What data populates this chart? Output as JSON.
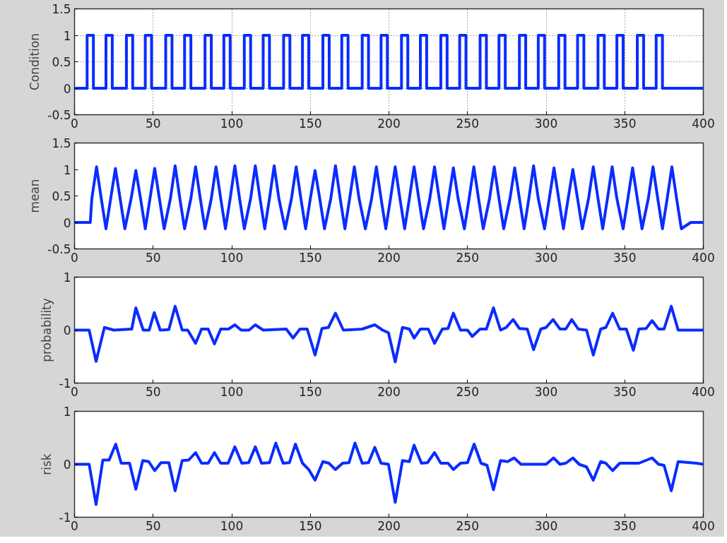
{
  "chart_data": [
    {
      "type": "line",
      "ylabel": "Condition",
      "xlim": [
        0,
        400
      ],
      "ylim": [
        -0.5,
        1.5
      ],
      "xticks": [
        0,
        50,
        100,
        150,
        200,
        250,
        300,
        350,
        400
      ],
      "yticks": [
        -0.5,
        0,
        0.5,
        1,
        1.5
      ],
      "grid": true,
      "x": [
        0,
        8,
        8,
        12,
        12,
        20,
        20,
        24,
        24,
        33,
        33,
        37,
        37,
        45,
        45,
        49,
        49,
        58,
        58,
        62,
        62,
        70,
        70,
        74,
        74,
        83,
        83,
        87,
        87,
        95,
        95,
        99,
        99,
        108,
        108,
        112,
        112,
        120,
        120,
        124,
        124,
        133,
        133,
        137,
        137,
        145,
        145,
        149,
        149,
        158,
        158,
        162,
        162,
        170,
        170,
        174,
        174,
        183,
        183,
        187,
        187,
        195,
        195,
        199,
        199,
        208,
        208,
        212,
        212,
        220,
        220,
        224,
        224,
        233,
        233,
        237,
        237,
        245,
        245,
        249,
        249,
        258,
        258,
        262,
        262,
        270,
        270,
        274,
        274,
        283,
        283,
        287,
        287,
        295,
        295,
        299,
        299,
        308,
        308,
        312,
        312,
        320,
        320,
        324,
        324,
        333,
        333,
        337,
        337,
        345,
        345,
        349,
        349,
        358,
        358,
        362,
        362,
        370,
        370,
        374,
        374,
        400
      ],
      "series": [
        {
          "color": "#0a2cff",
          "values": [
            0,
            0,
            1,
            1,
            0,
            0,
            1,
            1,
            0,
            0,
            1,
            1,
            0,
            0,
            1,
            1,
            0,
            0,
            1,
            1,
            0,
            0,
            1,
            1,
            0,
            0,
            1,
            1,
            0,
            0,
            1,
            1,
            0,
            0,
            1,
            1,
            0,
            0,
            1,
            1,
            0,
            0,
            1,
            1,
            0,
            0,
            1,
            1,
            0,
            0,
            1,
            1,
            0,
            0,
            1,
            1,
            0,
            0,
            1,
            1,
            0,
            0,
            1,
            1,
            0,
            0,
            1,
            1,
            0,
            0,
            1,
            1,
            0,
            0,
            1,
            1,
            0,
            0,
            1,
            1,
            0,
            0,
            1,
            1,
            0,
            0,
            1,
            1,
            0,
            0,
            1,
            1,
            0,
            0,
            1,
            1,
            0,
            0,
            1,
            1,
            0,
            0,
            1,
            1,
            0,
            0,
            1,
            1,
            0,
            0,
            1,
            1,
            0,
            0,
            1,
            1,
            0,
            0,
            1,
            1,
            0,
            0
          ]
        }
      ]
    },
    {
      "type": "line",
      "ylabel": "mean",
      "xlim": [
        0,
        400
      ],
      "ylim": [
        -0.5,
        1.5
      ],
      "xticks": [
        0,
        50,
        100,
        150,
        200,
        250,
        300,
        350,
        400
      ],
      "yticks": [
        -0.5,
        0,
        0.5,
        1,
        1.5
      ],
      "x": [
        0,
        10,
        11,
        14,
        17,
        20,
        23,
        26,
        29,
        32,
        36,
        39,
        42,
        45,
        48,
        51,
        54,
        57,
        61,
        64,
        67,
        70,
        74,
        77,
        80,
        83,
        87,
        90,
        93,
        96,
        99,
        102,
        105,
        108,
        112,
        115,
        118,
        121,
        124,
        127,
        130,
        134,
        138,
        141,
        144,
        147,
        150,
        153,
        156,
        159,
        163,
        166,
        169,
        172,
        175,
        178,
        181,
        185,
        189,
        192,
        195,
        198,
        201,
        204,
        207,
        210,
        213,
        216,
        219,
        222,
        226,
        229,
        232,
        235,
        238,
        241,
        244,
        248,
        251,
        254,
        257,
        260,
        264,
        267,
        270,
        273,
        277,
        280,
        283,
        286,
        289,
        292,
        295,
        299,
        302,
        305,
        308,
        311,
        314,
        317,
        320,
        323,
        327,
        330,
        333,
        336,
        339,
        342,
        345,
        349,
        352,
        355,
        358,
        361,
        365,
        368,
        371,
        374,
        377,
        380,
        383,
        386,
        392,
        400
      ],
      "series": [
        {
          "color": "#0a2cff",
          "values": [
            0,
            0,
            0.45,
            1.05,
            0.45,
            -0.12,
            0.45,
            1.02,
            0.45,
            -0.12,
            0.45,
            0.98,
            0.45,
            -0.12,
            0.45,
            1.02,
            0.45,
            -0.12,
            0.45,
            1.07,
            0.45,
            -0.12,
            0.45,
            1.05,
            0.45,
            -0.12,
            0.45,
            1.05,
            0.45,
            -0.12,
            0.45,
            1.07,
            0.45,
            -0.12,
            0.45,
            1.07,
            0.45,
            -0.12,
            0.45,
            1.07,
            0.45,
            -0.12,
            0.45,
            1.05,
            0.45,
            -0.12,
            0.45,
            0.98,
            0.45,
            -0.12,
            0.45,
            1.07,
            0.45,
            -0.12,
            0.45,
            1.05,
            0.45,
            -0.12,
            0.45,
            1.05,
            0.45,
            -0.12,
            0.45,
            1.05,
            0.45,
            -0.12,
            0.45,
            1.05,
            0.45,
            -0.12,
            0.45,
            1.05,
            0.45,
            -0.12,
            0.45,
            1.03,
            0.45,
            -0.12,
            0.45,
            1.05,
            0.45,
            -0.12,
            0.45,
            1.05,
            0.45,
            -0.12,
            0.45,
            1.03,
            0.45,
            -0.12,
            0.45,
            1.07,
            0.45,
            -0.12,
            0.45,
            1.03,
            0.45,
            -0.12,
            0.45,
            1.0,
            0.45,
            -0.12,
            0.45,
            1.05,
            0.45,
            -0.12,
            0.45,
            1.05,
            0.45,
            -0.12,
            0.45,
            1.03,
            0.45,
            -0.12,
            0.45,
            1.05,
            0.45,
            -0.12,
            0.45,
            1.05,
            0.45,
            -0.12,
            0,
            0
          ]
        }
      ]
    },
    {
      "type": "line",
      "ylabel": "probability",
      "xlim": [
        0,
        400
      ],
      "ylim": [
        -1,
        1
      ],
      "xticks": [
        0,
        50,
        100,
        150,
        200,
        250,
        300,
        350,
        400
      ],
      "yticks": [
        -1,
        0,
        1
      ],
      "x": [
        0,
        9.3,
        13.7,
        19,
        25,
        36.4,
        39,
        43.7,
        47.5,
        50.7,
        54.5,
        60,
        64,
        68.5,
        72,
        77,
        80.8,
        85,
        89,
        93,
        98,
        102,
        106,
        111,
        115,
        120,
        134.7,
        139,
        143.4,
        148,
        153,
        157.4,
        161.5,
        166,
        171,
        183,
        191,
        196,
        199.7,
        204,
        208.6,
        213,
        216,
        220,
        225,
        229,
        234,
        237.6,
        241,
        245.5,
        250,
        253,
        258,
        262,
        266.5,
        271,
        274.6,
        279,
        283,
        288,
        292,
        296.6,
        300,
        304.4,
        308.8,
        312.5,
        316.3,
        320.4,
        325.7,
        330,
        334.7,
        338,
        342.3,
        346.8,
        351,
        355.5,
        359,
        363.6,
        367.4,
        371.5,
        375,
        379.6,
        384,
        400
      ],
      "series": [
        {
          "color": "#0a2cff",
          "values": [
            0,
            0,
            -0.59,
            0.05,
            0,
            0.02,
            0.42,
            0,
            0,
            0.33,
            0,
            0.01,
            0.45,
            0,
            0,
            -0.25,
            0.02,
            0.02,
            -0.26,
            0.02,
            0.02,
            0.1,
            0,
            0,
            0.1,
            0,
            0.02,
            -0.15,
            0.02,
            0.02,
            -0.47,
            0.03,
            0.05,
            0.32,
            0,
            0.02,
            0.1,
            0,
            -0.05,
            -0.6,
            0.05,
            0.02,
            -0.15,
            0.02,
            0.02,
            -0.25,
            0.02,
            0.03,
            0.32,
            0,
            0,
            -0.12,
            0.02,
            0.02,
            0.42,
            0,
            0.05,
            0.2,
            0.03,
            0.02,
            -0.37,
            0.02,
            0.05,
            0.2,
            0.02,
            0.02,
            0.2,
            0.02,
            0,
            -0.47,
            0.02,
            0.05,
            0.32,
            0.02,
            0.02,
            -0.38,
            0.02,
            0.03,
            0.18,
            0.02,
            0.02,
            0.45,
            0,
            0
          ]
        }
      ]
    },
    {
      "type": "line",
      "ylabel": "risk",
      "xlim": [
        0,
        400
      ],
      "ylim": [
        -1,
        1
      ],
      "xticks": [
        0,
        50,
        100,
        150,
        200,
        250,
        300,
        350,
        400
      ],
      "yticks": [
        -1,
        0,
        1
      ],
      "x": [
        0,
        9.3,
        13.7,
        18,
        22,
        26.2,
        29.7,
        35,
        39,
        43.4,
        47.2,
        51,
        55,
        60,
        64,
        68.5,
        72.6,
        77,
        80.8,
        85,
        89,
        93,
        97.7,
        102,
        106.4,
        110.8,
        115,
        119,
        124,
        128,
        132.7,
        136.7,
        140.5,
        145,
        149,
        153,
        158,
        161.8,
        166,
        170.5,
        174.6,
        178.4,
        183,
        187,
        191,
        195,
        199.7,
        204,
        208.6,
        213,
        216,
        220.7,
        224.5,
        229,
        233,
        237.6,
        241,
        245.5,
        250,
        254.2,
        258.6,
        262.4,
        266.5,
        271,
        275.5,
        279.6,
        284,
        292,
        300,
        304.7,
        308.8,
        312.5,
        317,
        321,
        325.7,
        330,
        334.7,
        338,
        342.3,
        346.8,
        359,
        367.4,
        371.5,
        375,
        379.6,
        384,
        395.6,
        400
      ],
      "series": [
        {
          "color": "#0a2cff",
          "values": [
            0,
            0,
            -0.76,
            0.08,
            0.08,
            0.38,
            0.02,
            0.02,
            -0.47,
            0.07,
            0.05,
            -0.12,
            0.03,
            0.03,
            -0.5,
            0.07,
            0.08,
            0.22,
            0.02,
            0.02,
            0.22,
            0.02,
            0.02,
            0.33,
            0.02,
            0.03,
            0.33,
            0.02,
            0.03,
            0.4,
            0.02,
            0.03,
            0.38,
            0.02,
            -0.1,
            -0.3,
            0.05,
            0.02,
            -0.1,
            0.02,
            0.03,
            0.4,
            0.02,
            0.03,
            0.32,
            0.02,
            0,
            -0.72,
            0.07,
            0.05,
            0.36,
            0.02,
            0.03,
            0.22,
            0.02,
            0.02,
            -0.1,
            0.02,
            0.03,
            0.38,
            0.02,
            -0.02,
            -0.48,
            0.07,
            0.05,
            0.12,
            0,
            0,
            0,
            0.12,
            0,
            0.02,
            0.12,
            0,
            -0.05,
            -0.3,
            0.05,
            0.02,
            -0.12,
            0.02,
            0.02,
            0.12,
            0,
            -0.02,
            -0.5,
            0.05,
            0.02,
            0
          ]
        }
      ]
    }
  ]
}
